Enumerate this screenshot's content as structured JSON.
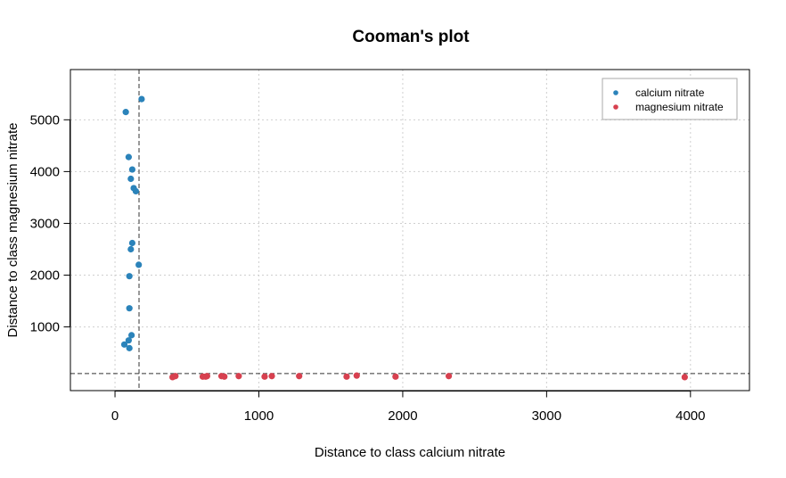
{
  "chart_data": {
    "type": "scatter",
    "title": "Cooman's plot",
    "xlabel": "Distance to class calcium nitrate",
    "ylabel": "Distance to class magnesium nitrate",
    "xlim": [
      -310,
      4410
    ],
    "ylim": [
      -230,
      5970
    ],
    "xticks": [
      0,
      1000,
      2000,
      3000,
      4000
    ],
    "yticks": [
      1000,
      2000,
      3000,
      4000,
      5000
    ],
    "grid": true,
    "legend_position": "top-right",
    "thresholds": {
      "x": 167,
      "y": 100
    },
    "series": [
      {
        "name": "calcium nitrate",
        "color": "#2b83ba",
        "points": [
          [
            75,
            5150
          ],
          [
            185,
            5400
          ],
          [
            95,
            4280
          ],
          [
            120,
            4040
          ],
          [
            110,
            3860
          ],
          [
            130,
            3680
          ],
          [
            145,
            3620
          ],
          [
            120,
            2620
          ],
          [
            110,
            2500
          ],
          [
            165,
            2200
          ],
          [
            100,
            1980
          ],
          [
            100,
            1360
          ],
          [
            115,
            840
          ],
          [
            95,
            740
          ],
          [
            65,
            660
          ],
          [
            100,
            590
          ]
        ]
      },
      {
        "name": "magnesium nitrate",
        "color": "#d7404f",
        "points": [
          [
            400,
            30
          ],
          [
            420,
            50
          ],
          [
            610,
            40
          ],
          [
            630,
            40
          ],
          [
            640,
            50
          ],
          [
            740,
            50
          ],
          [
            760,
            40
          ],
          [
            860,
            50
          ],
          [
            1040,
            40
          ],
          [
            1090,
            50
          ],
          [
            1280,
            50
          ],
          [
            1610,
            40
          ],
          [
            1680,
            60
          ],
          [
            1950,
            40
          ],
          [
            2320,
            50
          ],
          [
            3960,
            30
          ]
        ]
      }
    ]
  }
}
